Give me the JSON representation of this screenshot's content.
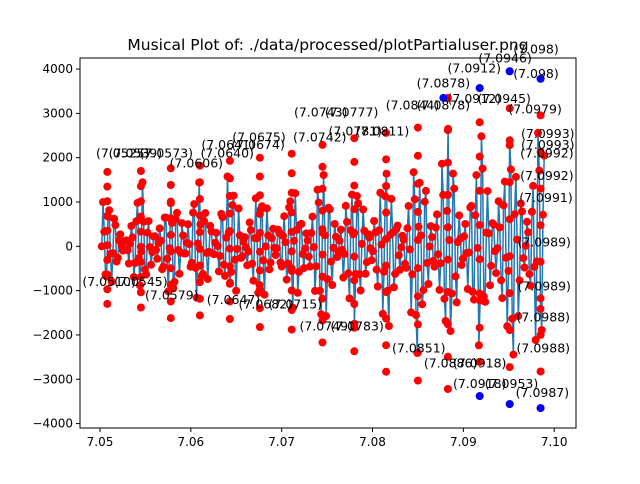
{
  "chart_data": {
    "type": "line",
    "title": "Musical Plot of: ./data/processed/plotPartialuser.png",
    "xlabel": "",
    "ylabel": "",
    "xlim": [
      7.0478,
      7.1024
    ],
    "ylim": [
      -4100,
      4250
    ],
    "x_ticks": [
      7.05,
      7.06,
      7.07,
      7.08,
      7.09,
      7.1
    ],
    "x_tick_labels": [
      "7.05",
      "7.06",
      "7.07",
      "7.08",
      "7.09",
      "7.10"
    ],
    "y_ticks": [
      -4000,
      -3000,
      -2000,
      -1000,
      0,
      1000,
      2000,
      3000,
      4000
    ],
    "y_tick_labels": [
      "−4000",
      "−3000",
      "−2000",
      "−1000",
      "0",
      "1000",
      "2000",
      "3000",
      "4000"
    ],
    "grid": false,
    "line_color": "#1f77b4",
    "marker_color": "#ff0000",
    "extreme_marker_color": "#0000ff",
    "group_x": [
      7.0508,
      7.0545,
      7.0578,
      7.061,
      7.0643,
      7.0676,
      7.0711,
      7.0745,
      7.078,
      7.0815,
      7.085,
      7.0883,
      7.0918,
      7.0951,
      7.0985
    ],
    "group_max": [
      1680,
      1700,
      1760,
      1820,
      1930,
      2000,
      2090,
      2290,
      2440,
      2560,
      2680,
      3350,
      3570,
      3950,
      3780
    ],
    "group_min": [
      -1300,
      -1380,
      -1620,
      -1560,
      -1640,
      -1820,
      -1880,
      -2170,
      -2370,
      -2830,
      -3030,
      -3220,
      -3380,
      -3560,
      -3650
    ],
    "blue_points": [
      {
        "x": 7.0878,
        "y": 3350
      },
      {
        "x": 7.0918,
        "y": 3570
      },
      {
        "x": 7.0951,
        "y": 3950
      },
      {
        "x": 7.0985,
        "y": 3780
      },
      {
        "x": 7.0918,
        "y": -3380
      },
      {
        "x": 7.0951,
        "y": -3560
      },
      {
        "x": 7.0985,
        "y": -3650
      }
    ],
    "annotations": [
      {
        "text": "(7.0525)",
        "x": 7.0525,
        "y": 2010
      },
      {
        "text": "(7.0539)",
        "x": 7.0539,
        "y": 2010
      },
      {
        "text": "(7.0573)",
        "x": 7.0573,
        "y": 2010
      },
      {
        "text": "(7.0606)",
        "x": 7.0606,
        "y": 1780
      },
      {
        "text": "(7.0640)",
        "x": 7.064,
        "y": 2010
      },
      {
        "text": "(7.0641)",
        "x": 7.0641,
        "y": 2200
      },
      {
        "text": "(7.0674)",
        "x": 7.0674,
        "y": 2200
      },
      {
        "text": "(7.0675)",
        "x": 7.0675,
        "y": 2360
      },
      {
        "text": "(7.0742)",
        "x": 7.0742,
        "y": 2360
      },
      {
        "text": "(7.0743)",
        "x": 7.0743,
        "y": 2930
      },
      {
        "text": "(7.0777)",
        "x": 7.0777,
        "y": 2930
      },
      {
        "text": "(7.0781)",
        "x": 7.0781,
        "y": 2500
      },
      {
        "text": "(7.0811)",
        "x": 7.0811,
        "y": 2500
      },
      {
        "text": "(7.0844)",
        "x": 7.0844,
        "y": 3090
      },
      {
        "text": "(7.0878)",
        "x": 7.0878,
        "y": 3090
      },
      {
        "text": "(7.0878)",
        "x": 7.0878,
        "y": 3580
      },
      {
        "text": "(7.0912)",
        "x": 7.0912,
        "y": 3920
      },
      {
        "text": "(7.0912)",
        "x": 7.0912,
        "y": 3230
      },
      {
        "text": "(7.0945)",
        "x": 7.0945,
        "y": 3230
      },
      {
        "text": "(7.0946)",
        "x": 7.0946,
        "y": 4150
      },
      {
        "text": "(7.098)",
        "x": 7.098,
        "y": 4350
      },
      {
        "text": "(7.098)",
        "x": 7.098,
        "y": 3800
      },
      {
        "text": "(7.0979)",
        "x": 7.0979,
        "y": 3000
      },
      {
        "text": "(7.0993)",
        "x": 7.0993,
        "y": 2450
      },
      {
        "text": "(7.0993)",
        "x": 7.0993,
        "y": 2200
      },
      {
        "text": "(7.0992)",
        "x": 7.0992,
        "y": 2000
      },
      {
        "text": "(7.0992)",
        "x": 7.0992,
        "y": 1500
      },
      {
        "text": "(7.0991)",
        "x": 7.0991,
        "y": 1000
      },
      {
        "text": "(7.0989)",
        "x": 7.0989,
        "y": 0
      },
      {
        "text": "(7.0989)",
        "x": 7.0989,
        "y": -1000
      },
      {
        "text": "(7.0988)",
        "x": 7.0988,
        "y": -1700
      },
      {
        "text": "(7.0988)",
        "x": 7.0988,
        "y": -2400
      },
      {
        "text": "(7.0987)",
        "x": 7.0987,
        "y": -3400
      },
      {
        "text": "(7.0953)",
        "x": 7.0953,
        "y": -3200
      },
      {
        "text": "(7.0918)",
        "x": 7.0918,
        "y": -3200
      },
      {
        "text": "(7.0918)",
        "x": 7.0918,
        "y": -2730
      },
      {
        "text": "(7.0886)",
        "x": 7.0886,
        "y": -2730
      },
      {
        "text": "(7.0851)",
        "x": 7.0851,
        "y": -2400
      },
      {
        "text": "(7.0783)",
        "x": 7.0783,
        "y": -1900
      },
      {
        "text": "(7.0749)",
        "x": 7.0749,
        "y": -1900
      },
      {
        "text": "(7.0715)",
        "x": 7.0715,
        "y": -1400
      },
      {
        "text": "(7.0682)",
        "x": 7.0682,
        "y": -1400
      },
      {
        "text": "(7.0647)",
        "x": 7.0647,
        "y": -1300
      },
      {
        "text": "(7.0579)",
        "x": 7.0579,
        "y": -1200
      },
      {
        "text": "(7.0545)",
        "x": 7.0545,
        "y": -900
      },
      {
        "text": "(7.0510)",
        "x": 7.051,
        "y": -900
      }
    ]
  }
}
